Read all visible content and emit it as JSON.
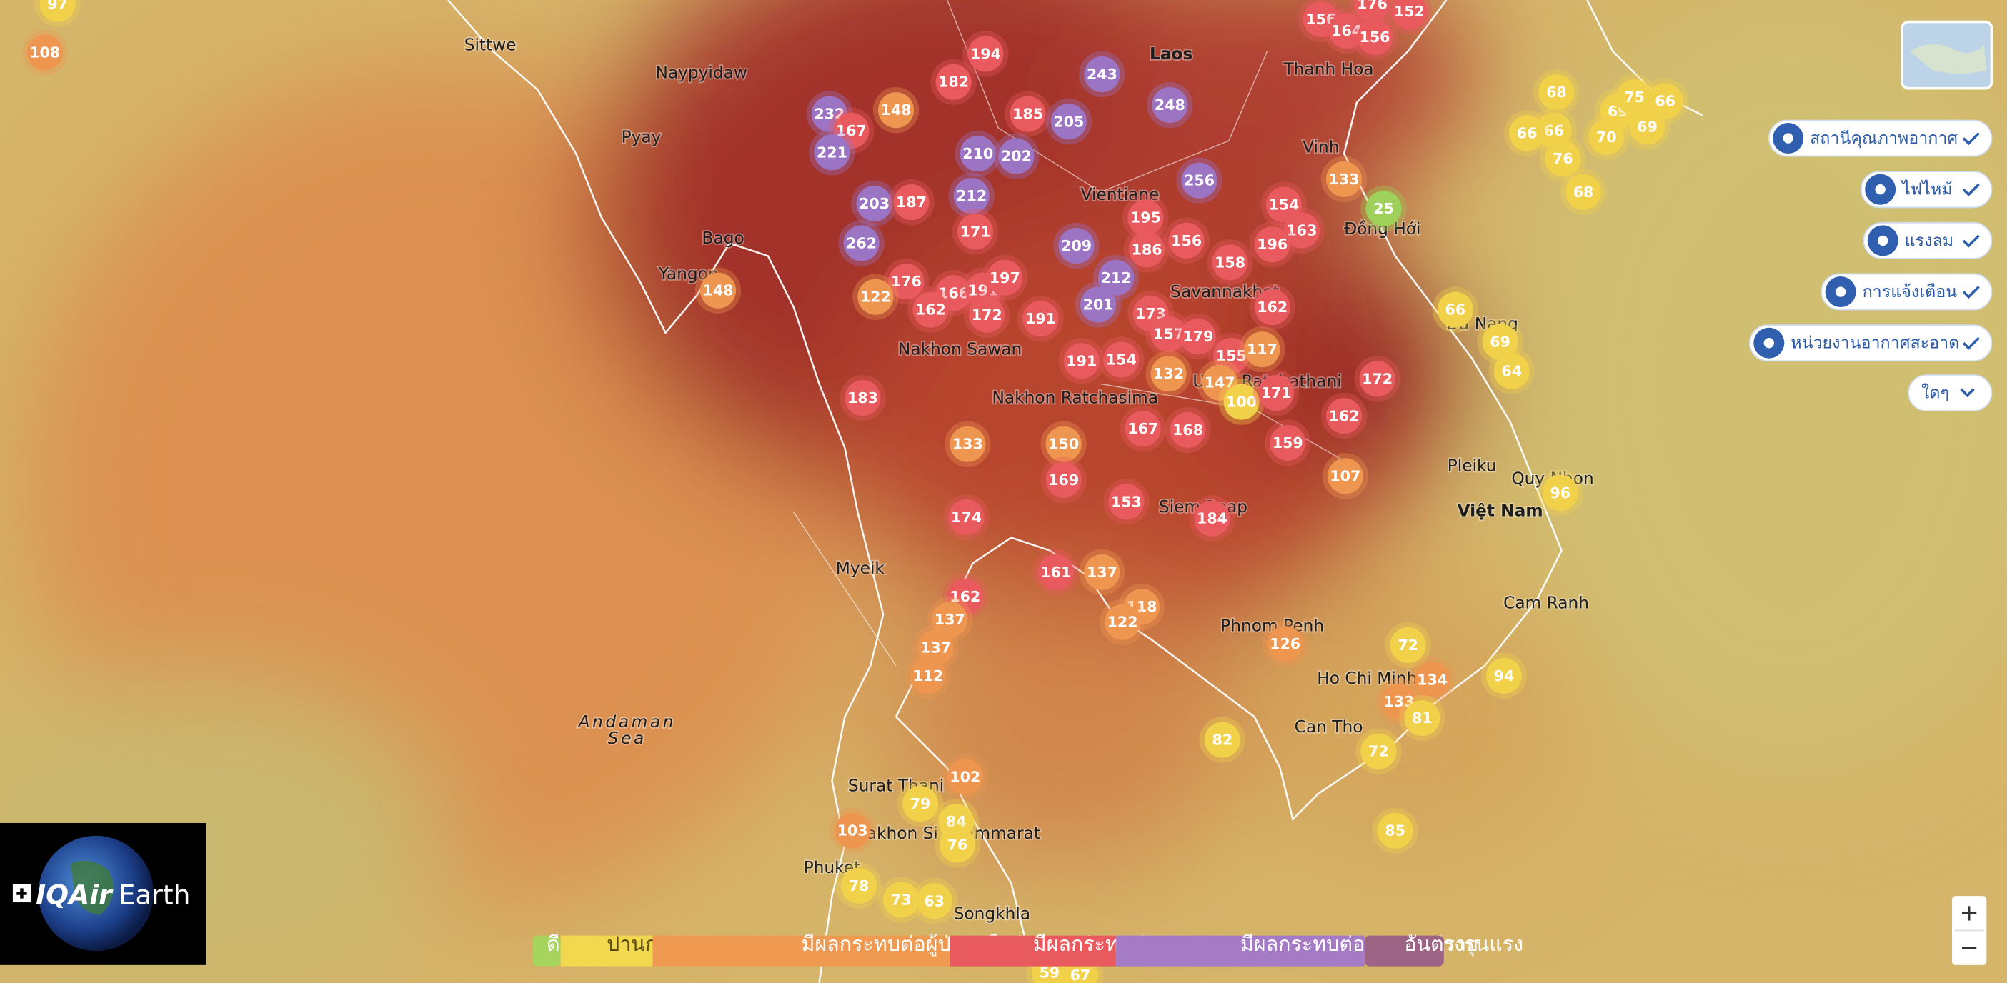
{
  "map": {
    "places": [
      {
        "name": "Sittwe"
      },
      {
        "name": "Naypyidaw"
      },
      {
        "name": "Pyay"
      },
      {
        "name": "Bago"
      },
      {
        "name": "Yangon"
      },
      {
        "name": "Laos"
      },
      {
        "name": "Thanh Hoa"
      },
      {
        "name": "Vinh"
      },
      {
        "name": "Đồng Hới"
      },
      {
        "name": "Vientiane"
      },
      {
        "name": "Savannakhet"
      },
      {
        "name": "Nakhon Sawan"
      },
      {
        "name": "Nakhon Ratchasima"
      },
      {
        "name": "Ubon Ratchathani"
      },
      {
        "name": "Da Nang"
      },
      {
        "name": "Pleiku"
      },
      {
        "name": "Quy Nhon"
      },
      {
        "name": "Việt Nam"
      },
      {
        "name": "Siem Reap"
      },
      {
        "name": "Myeik"
      },
      {
        "name": "Phnom Penh"
      },
      {
        "name": "Cam Ranh"
      },
      {
        "name": "Ho Chi Minh"
      },
      {
        "name": "Can Tho"
      },
      {
        "name": "Surat Thani"
      },
      {
        "name": "Nakhon Si Thammarat"
      },
      {
        "name": "Phuket"
      },
      {
        "name": "Songkhla"
      },
      {
        "name": "Andaman"
      },
      {
        "name": "Sea"
      }
    ],
    "markers": [
      {
        "value": 97,
        "color": "#f2d14a"
      },
      {
        "value": 108,
        "color": "#ee9550"
      },
      {
        "value": 148,
        "color": "#ee9550"
      },
      {
        "value": 232,
        "color": "#9b74c4"
      },
      {
        "value": 167,
        "color": "#e95a5e"
      },
      {
        "value": 148,
        "color": "#ee9550"
      },
      {
        "value": 221,
        "color": "#9b74c4"
      },
      {
        "value": 182,
        "color": "#e95a5e"
      },
      {
        "value": 194,
        "color": "#e95a5e"
      },
      {
        "value": 185,
        "color": "#e95a5e"
      },
      {
        "value": 205,
        "color": "#9b74c4"
      },
      {
        "value": 243,
        "color": "#9b74c4"
      },
      {
        "value": 248,
        "color": "#9b74c4"
      },
      {
        "value": 210,
        "color": "#9b74c4"
      },
      {
        "value": 202,
        "color": "#9b74c4"
      },
      {
        "value": 212,
        "color": "#9b74c4"
      },
      {
        "value": 203,
        "color": "#9b74c4"
      },
      {
        "value": 187,
        "color": "#e95a5e"
      },
      {
        "value": 171,
        "color": "#e95a5e"
      },
      {
        "value": 262,
        "color": "#9b74c4"
      },
      {
        "value": 209,
        "color": "#9b74c4"
      },
      {
        "value": 195,
        "color": "#e95a5e"
      },
      {
        "value": 186,
        "color": "#e95a5e"
      },
      {
        "value": 156,
        "color": "#e95a5e"
      },
      {
        "value": 256,
        "color": "#9b74c4"
      },
      {
        "value": 154,
        "color": "#e95a5e"
      },
      {
        "value": 163,
        "color": "#e95a5e"
      },
      {
        "value": 196,
        "color": "#e95a5e"
      },
      {
        "value": 158,
        "color": "#e95a5e"
      },
      {
        "value": 133,
        "color": "#ee9550"
      },
      {
        "value": 25,
        "color": "#9ed05a"
      },
      {
        "value": 156,
        "color": "#e95a5e"
      },
      {
        "value": 164,
        "color": "#e95a5e"
      },
      {
        "value": 156,
        "color": "#e95a5e"
      },
      {
        "value": 152,
        "color": "#e95a5e"
      },
      {
        "value": 176,
        "color": "#e95a5e"
      },
      {
        "value": 176,
        "color": "#e95a5e"
      },
      {
        "value": 166,
        "color": "#e95a5e"
      },
      {
        "value": 191,
        "color": "#e95a5e"
      },
      {
        "value": 197,
        "color": "#e95a5e"
      },
      {
        "value": 122,
        "color": "#ee9550"
      },
      {
        "value": 162,
        "color": "#e95a5e"
      },
      {
        "value": 172,
        "color": "#e95a5e"
      },
      {
        "value": 191,
        "color": "#e95a5e"
      },
      {
        "value": 212,
        "color": "#9b74c4"
      },
      {
        "value": 201,
        "color": "#9b74c4"
      },
      {
        "value": 173,
        "color": "#e95a5e"
      },
      {
        "value": 157,
        "color": "#e95a5e"
      },
      {
        "value": 179,
        "color": "#e95a5e"
      },
      {
        "value": 162,
        "color": "#e95a5e"
      },
      {
        "value": 155,
        "color": "#e95a5e"
      },
      {
        "value": 117,
        "color": "#ee9550"
      },
      {
        "value": 191,
        "color": "#e95a5e"
      },
      {
        "value": 154,
        "color": "#e95a5e"
      },
      {
        "value": 132,
        "color": "#ee9550"
      },
      {
        "value": 147,
        "color": "#ee9550"
      },
      {
        "value": 100,
        "color": "#f2d14a"
      },
      {
        "value": 171,
        "color": "#e95a5e"
      },
      {
        "value": 172,
        "color": "#e95a5e"
      },
      {
        "value": 162,
        "color": "#e95a5e"
      },
      {
        "value": 183,
        "color": "#e95a5e"
      },
      {
        "value": 167,
        "color": "#e95a5e"
      },
      {
        "value": 168,
        "color": "#e95a5e"
      },
      {
        "value": 159,
        "color": "#e95a5e"
      },
      {
        "value": 133,
        "color": "#ee9550"
      },
      {
        "value": 150,
        "color": "#ee9550"
      },
      {
        "value": 169,
        "color": "#e95a5e"
      },
      {
        "value": 107,
        "color": "#ee9550"
      },
      {
        "value": 174,
        "color": "#e95a5e"
      },
      {
        "value": 153,
        "color": "#e95a5e"
      },
      {
        "value": 184,
        "color": "#e95a5e"
      },
      {
        "value": 161,
        "color": "#e95a5e"
      },
      {
        "value": 137,
        "color": "#ee9550"
      },
      {
        "value": 162,
        "color": "#e95a5e"
      },
      {
        "value": 118,
        "color": "#ee9550"
      },
      {
        "value": 122,
        "color": "#ee9550"
      },
      {
        "value": 137,
        "color": "#ee9550"
      },
      {
        "value": 137,
        "color": "#ee9550"
      },
      {
        "value": 112,
        "color": "#ee9550"
      },
      {
        "value": 126,
        "color": "#ee9550"
      },
      {
        "value": 72,
        "color": "#f2d14a"
      },
      {
        "value": 134,
        "color": "#ee9550"
      },
      {
        "value": 133,
        "color": "#ee9550"
      },
      {
        "value": 81,
        "color": "#f2d14a"
      },
      {
        "value": 94,
        "color": "#f2d14a"
      },
      {
        "value": 82,
        "color": "#f2d14a"
      },
      {
        "value": 72,
        "color": "#f2d14a"
      },
      {
        "value": 85,
        "color": "#f2d14a"
      },
      {
        "value": 102,
        "color": "#ee9550"
      },
      {
        "value": 79,
        "color": "#f2d14a"
      },
      {
        "value": 84,
        "color": "#f2d14a"
      },
      {
        "value": 76,
        "color": "#f2d14a"
      },
      {
        "value": 103,
        "color": "#ee9550"
      },
      {
        "value": 78,
        "color": "#f2d14a"
      },
      {
        "value": 73,
        "color": "#f2d14a"
      },
      {
        "value": 63,
        "color": "#f2d14a"
      },
      {
        "value": 59,
        "color": "#f2d14a"
      },
      {
        "value": 67,
        "color": "#f2d14a"
      },
      {
        "value": 66,
        "color": "#f2d14a"
      },
      {
        "value": 69,
        "color": "#f2d14a"
      },
      {
        "value": 64,
        "color": "#f2d14a"
      },
      {
        "value": 96,
        "color": "#f2d14a"
      },
      {
        "value": 68,
        "color": "#f2d14a"
      },
      {
        "value": 66,
        "color": "#f2d14a"
      },
      {
        "value": 76,
        "color": "#f2d14a"
      },
      {
        "value": 68,
        "color": "#f2d14a"
      },
      {
        "value": 69,
        "color": "#f2d14a"
      },
      {
        "value": 70,
        "color": "#f2d14a"
      },
      {
        "value": 75,
        "color": "#f2d14a"
      },
      {
        "value": 66,
        "color": "#f2d14a"
      },
      {
        "value": 69,
        "color": "#f2d14a"
      },
      {
        "value": 66,
        "color": "#f2d14a"
      }
    ],
    "controls": [
      {
        "label": "สถานีคุณภาพอากาศ"
      },
      {
        "label": "ไฟไหม้"
      },
      {
        "label": "แรงลม"
      },
      {
        "label": "การแจ้งเตือน"
      },
      {
        "label": "หน่วยงานอากาศสะอาด"
      },
      {
        "label": "ใดๆ"
      }
    ],
    "legend": [
      {
        "label": "ดี",
        "color": "#a6d45c"
      },
      {
        "label": "ปานกลาง",
        "color": "#f2d84e"
      },
      {
        "label": "มีผลกระทบต่อผู้ป่วยหรือร่างกายอ่อนแอ",
        "color": "#ef9a50"
      },
      {
        "label": "มีผลกระทบต่อทุกคน",
        "color": "#e95a5e"
      },
      {
        "label": "มีผลกระทบต่อทุกคนอย่างรุนแรง",
        "color": "#a57bc6"
      },
      {
        "label": "อันตราย",
        "color": "#9c6384"
      }
    ],
    "logo": {
      "brand": "IQAir",
      "product": "Earth"
    },
    "zoom": {
      "in": "+",
      "out": "−"
    }
  }
}
